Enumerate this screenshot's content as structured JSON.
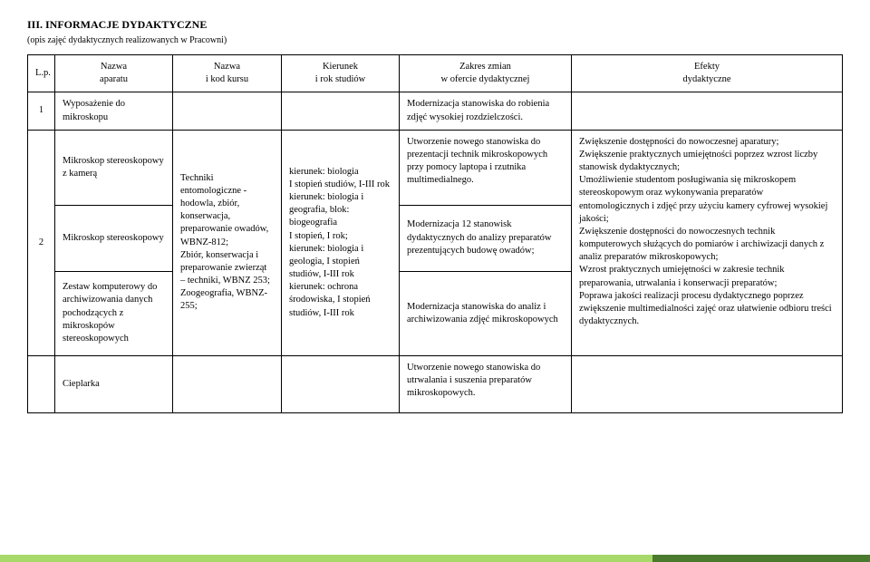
{
  "title": "III. INFORMACJE DYDAKTYCZNE",
  "subtitle": "(opis zajęć dydaktycznych realizowanych w Pracowni)",
  "headers": {
    "lp": "L.p.",
    "nazwa": "Nazwa\naparatu",
    "kurs": "Nazwa\ni kod kursu",
    "kierunek": "Kierunek\ni rok studiów",
    "zakres": "Zakres zmian\nw ofercie dydaktycznej",
    "efekty": "Efekty\ndydaktyczne"
  },
  "row1": {
    "lp": "1",
    "nazwa": "Wyposażenie do mikroskopu",
    "kurs": "",
    "kierunek": "",
    "zakres": "Modernizacja stanowiska do robienia zdjęć wysokiej rozdzielczości.",
    "efekty": ""
  },
  "row2": {
    "lp": "2",
    "nazwa1": "Mikroskop stereoskopowy z kamerą",
    "nazwa2": "Mikroskop stereoskopowy",
    "nazwa3": "Zestaw komputerowy do archiwizowania danych pochodzących z mikroskopów stereoskopowych",
    "nazwa4": "Cieplarka",
    "kurs": "Techniki entomologiczne - hodowla, zbiór, konserwacja, preparowanie owadów, WBNZ-812;\nZbiór, konserwacja i preparowanie zwierząt – techniki, WBNZ 253;\nZoogeografia, WBNZ-255;",
    "kierunek": "kierunek: biologia\nI stopień studiów, I-III rok\nkierunek: biologia i geografia, blok: biogeografia\nI stopień, I rok;\nkierunek: biologia i geologia, I stopień studiów, I-III rok\nkierunek: ochrona środowiska, I stopień studiów, I-III rok",
    "zakres1": "Utworzenie nowego stanowiska do prezentacji technik mikroskopowych przy pomocy laptopa i rzutnika multimedialnego.",
    "zakres2": "Modernizacja 12 stanowisk dydaktycznych do analizy preparatów prezentujących budowę owadów;",
    "zakres3": "Modernizacja stanowiska do analiz i archiwizowania zdjęć mikroskopowych",
    "zakres4": "Utworzenie nowego stanowiska do utrwalania i suszenia preparatów mikroskopowych.",
    "efekty": "Zwiększenie dostępności do nowoczesnej aparatury;\nZwiększenie praktycznych umiejętności poprzez wzrost liczby stanowisk dydaktycznych;\nUmożliwienie studentom posługiwania się mikroskopem stereoskopowym oraz wykonywania preparatów entomologicznych i zdjęć przy użyciu kamery cyfrowej wysokiej jakości;\nZwiększenie dostępności do nowoczesnych technik komputerowych służących do pomiarów i archiwizacji danych z analiz preparatów mikroskopowych;\nWzrost praktycznych umiejętności w zakresie technik preparowania, utrwalania i konserwacji preparatów;\nPoprawa jakości realizacji procesu dydaktycznego poprzez zwiększenie multimedialności zajęć oraz ułatwienie odbioru treści dydaktycznych."
  }
}
